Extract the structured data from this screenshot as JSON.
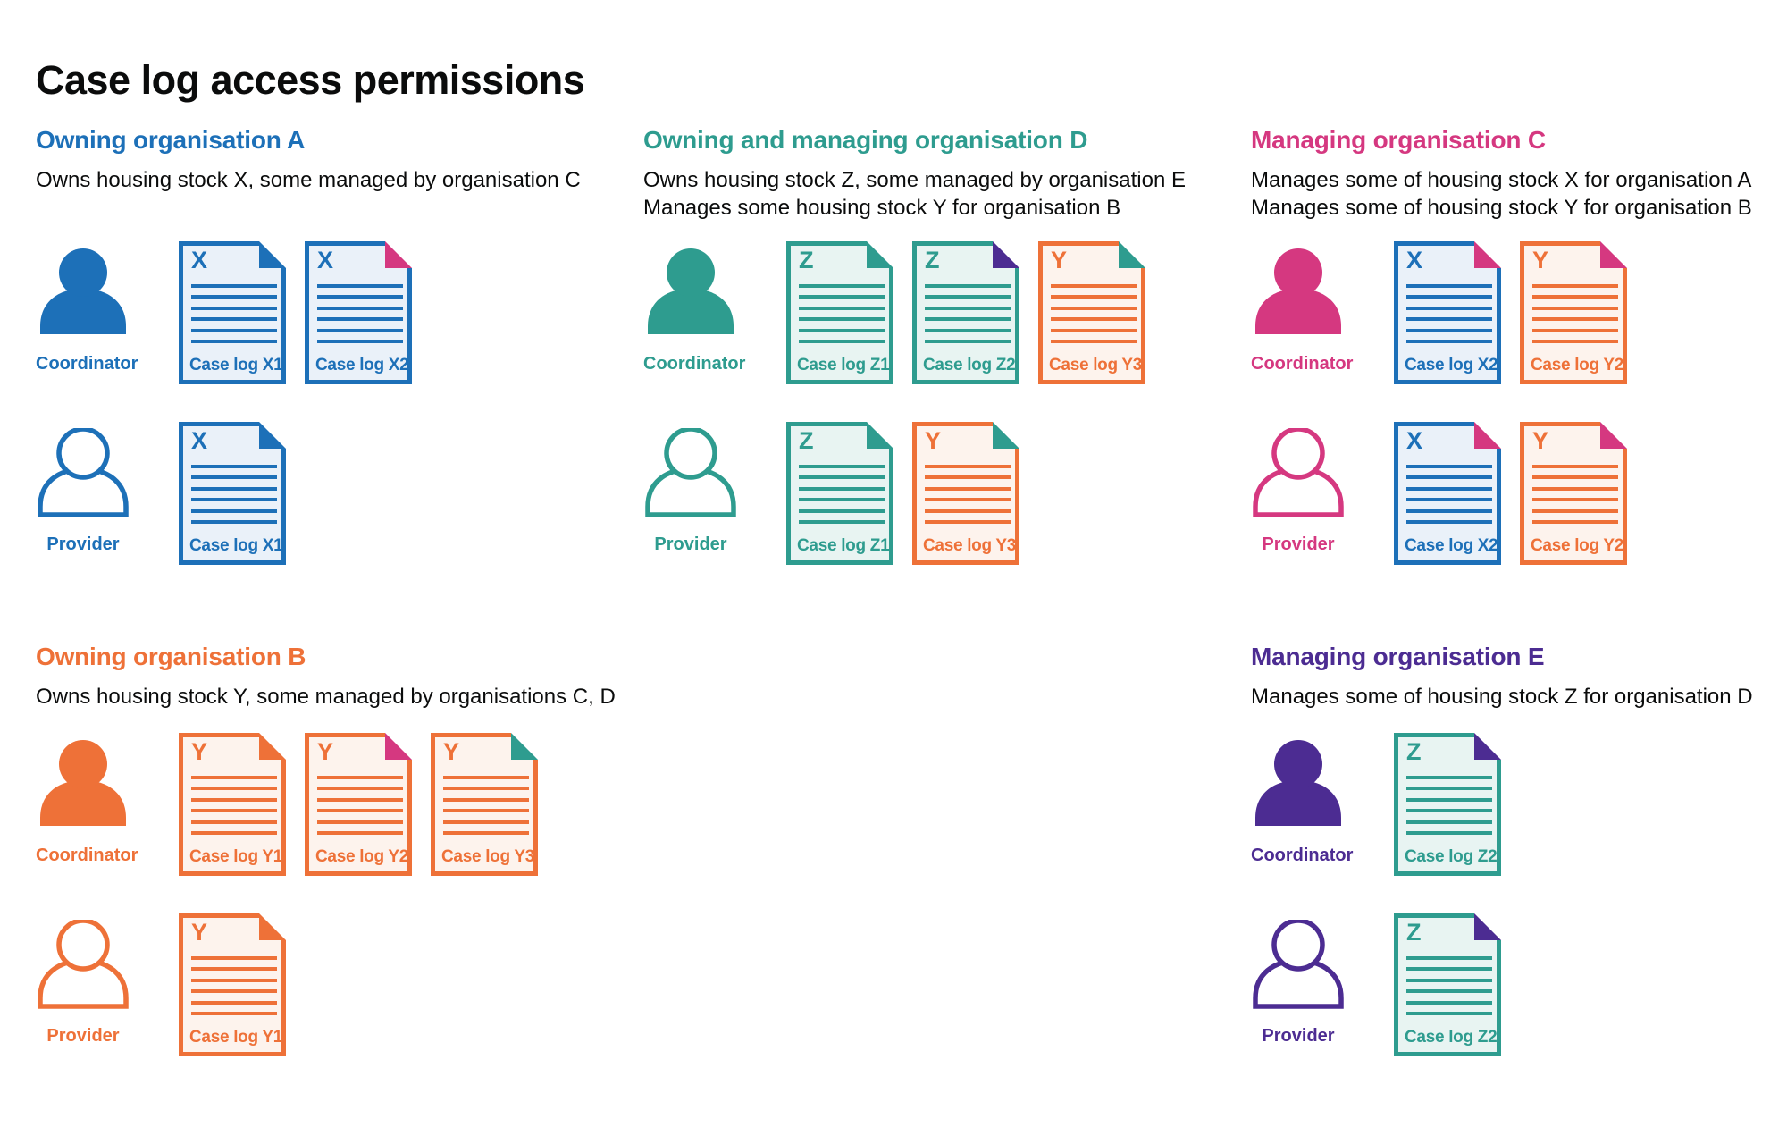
{
  "title": "Case log access permissions",
  "colors": {
    "blue": "#1d70b8",
    "teal": "#2e9c8f",
    "pink": "#d53880",
    "orange": "#ee7138",
    "purple": "#4c2c92",
    "text": "#0b0c0c",
    "blue_bg": "#eaf1f9",
    "teal_bg": "#e8f4f2",
    "orange_bg": "#fdf3ed"
  },
  "sections": [
    {
      "heading": "Owning organisation A",
      "color": "blue",
      "subtitles": [
        "Owns housing stock X, some managed by organisation C"
      ],
      "rows": [
        {
          "role": "Coordinator",
          "style": "filled",
          "docs": [
            {
              "letter": "X",
              "label": "Case log X1",
              "color": "blue",
              "fold": "blue"
            },
            {
              "letter": "X",
              "label": "Case log X2",
              "color": "blue",
              "fold": "pink"
            }
          ]
        },
        {
          "role": "Provider",
          "style": "outline",
          "docs": [
            {
              "letter": "X",
              "label": "Case log X1",
              "color": "blue",
              "fold": "blue"
            }
          ]
        }
      ]
    },
    {
      "heading": "Owning and managing organisation D",
      "color": "teal",
      "subtitles": [
        "Owns housing stock Z, some managed by organisation E",
        "Manages some housing stock Y for organisation B"
      ],
      "rows": [
        {
          "role": "Coordinator",
          "style": "filled",
          "docs": [
            {
              "letter": "Z",
              "label": "Case log Z1",
              "color": "teal",
              "fold": "teal"
            },
            {
              "letter": "Z",
              "label": "Case log Z2",
              "color": "teal",
              "fold": "purple"
            },
            {
              "letter": "Y",
              "label": "Case log Y3",
              "color": "orange",
              "fold": "teal"
            }
          ]
        },
        {
          "role": "Provider",
          "style": "outline",
          "docs": [
            {
              "letter": "Z",
              "label": "Case log Z1",
              "color": "teal",
              "fold": "teal"
            },
            {
              "letter": "Y",
              "label": "Case log Y3",
              "color": "orange",
              "fold": "teal"
            }
          ]
        }
      ]
    },
    {
      "heading": "Managing organisation C",
      "color": "pink",
      "subtitles": [
        "Manages some of housing stock X for organisation A",
        "Manages some of housing stock Y for organisation B"
      ],
      "rows": [
        {
          "role": "Coordinator",
          "style": "filled",
          "docs": [
            {
              "letter": "X",
              "label": "Case log X2",
              "color": "blue",
              "fold": "pink"
            },
            {
              "letter": "Y",
              "label": "Case log Y2",
              "color": "orange",
              "fold": "pink"
            }
          ]
        },
        {
          "role": "Provider",
          "style": "outline",
          "docs": [
            {
              "letter": "X",
              "label": "Case log X2",
              "color": "blue",
              "fold": "pink"
            },
            {
              "letter": "Y",
              "label": "Case log Y2",
              "color": "orange",
              "fold": "pink"
            }
          ]
        }
      ]
    },
    {
      "heading": "Owning organisation B",
      "color": "orange",
      "subtitles": [
        "Owns housing stock Y, some managed by organisations C, D"
      ],
      "rows": [
        {
          "role": "Coordinator",
          "style": "filled",
          "docs": [
            {
              "letter": "Y",
              "label": "Case log Y1",
              "color": "orange",
              "fold": "orange"
            },
            {
              "letter": "Y",
              "label": "Case log Y2",
              "color": "orange",
              "fold": "pink"
            },
            {
              "letter": "Y",
              "label": "Case log Y3",
              "color": "orange",
              "fold": "teal"
            }
          ]
        },
        {
          "role": "Provider",
          "style": "outline",
          "docs": [
            {
              "letter": "Y",
              "label": "Case log Y1",
              "color": "orange",
              "fold": "orange"
            }
          ]
        }
      ]
    },
    {
      "heading": "Managing organisation E",
      "color": "purple",
      "subtitles": [
        "Manages some of housing stock Z for organisation D"
      ],
      "rows": [
        {
          "role": "Coordinator",
          "style": "filled",
          "docs": [
            {
              "letter": "Z",
              "label": "Case log Z2",
              "color": "teal",
              "fold": "purple"
            }
          ]
        },
        {
          "role": "Provider",
          "style": "outline",
          "docs": [
            {
              "letter": "Z",
              "label": "Case log Z2",
              "color": "teal",
              "fold": "purple"
            }
          ]
        }
      ]
    }
  ]
}
